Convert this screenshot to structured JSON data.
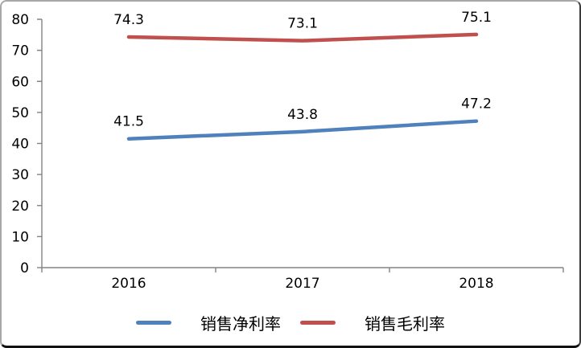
{
  "chart_data": {
    "type": "line",
    "title": "",
    "xlabel": "",
    "ylabel": "",
    "categories": [
      "2016",
      "2017",
      "2018"
    ],
    "series": [
      {
        "name": "销售净利率",
        "color": "#4F81BD",
        "values": [
          41.5,
          43.8,
          47.2
        ]
      },
      {
        "name": "销售毛利率",
        "color": "#C0504D",
        "values": [
          74.3,
          73.1,
          75.1
        ]
      }
    ],
    "ylim": [
      0,
      80
    ],
    "ytick_step": 10,
    "ytick_labels": [
      "0",
      "10",
      "20",
      "30",
      "40",
      "50",
      "60",
      "70",
      "80"
    ],
    "data_labels": "above",
    "grid": "off",
    "legend_position": "bottom",
    "axis_color": "#848484",
    "label_color": "#000000"
  }
}
